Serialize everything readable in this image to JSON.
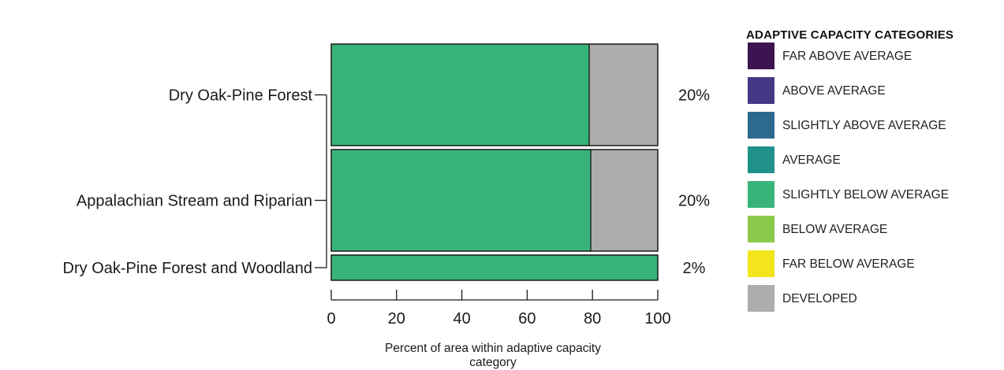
{
  "chart_data": {
    "type": "bar",
    "orientation": "horizontal",
    "stacked": true,
    "categories": [
      "Dry Oak-Pine Forest",
      "Appalachian Stream and Riparian",
      "Dry Oak-Pine Forest and Woodland"
    ],
    "series": [
      {
        "name": "FAR ABOVE AVERAGE",
        "color": "#3d1450",
        "values": [
          0,
          0,
          0
        ]
      },
      {
        "name": "ABOVE AVERAGE",
        "color": "#443984",
        "values": [
          0,
          0,
          0
        ]
      },
      {
        "name": "SLIGHTLY ABOVE AVERAGE",
        "color": "#2e6a8e",
        "values": [
          0,
          0,
          0
        ]
      },
      {
        "name": "AVERAGE",
        "color": "#21918c",
        "values": [
          0,
          0,
          0
        ]
      },
      {
        "name": "SLIGHTLY BELOW AVERAGE",
        "color": "#38b47a",
        "values": [
          79,
          79.5,
          100
        ]
      },
      {
        "name": "BELOW AVERAGE",
        "color": "#8bc94b",
        "values": [
          0,
          0,
          0
        ]
      },
      {
        "name": "FAR BELOW AVERAGE",
        "color": "#f2e51c",
        "values": [
          0,
          0,
          0
        ]
      },
      {
        "name": "DEVELOPED",
        "color": "#adadad",
        "values": [
          21,
          20.5,
          0
        ]
      }
    ],
    "bar_share_labels": [
      "20%",
      "20%",
      "2%"
    ],
    "bar_weights": [
      20,
      20,
      2
    ],
    "xlabel": "Percent of area within adaptive capacity category",
    "ylabel": "",
    "xlim": [
      0,
      100
    ],
    "xticks": [
      0,
      20,
      40,
      60,
      80,
      100
    ],
    "grid": false,
    "legend_title": "ADAPTIVE CAPACITY CATEGORIES",
    "legend_position": "right"
  }
}
